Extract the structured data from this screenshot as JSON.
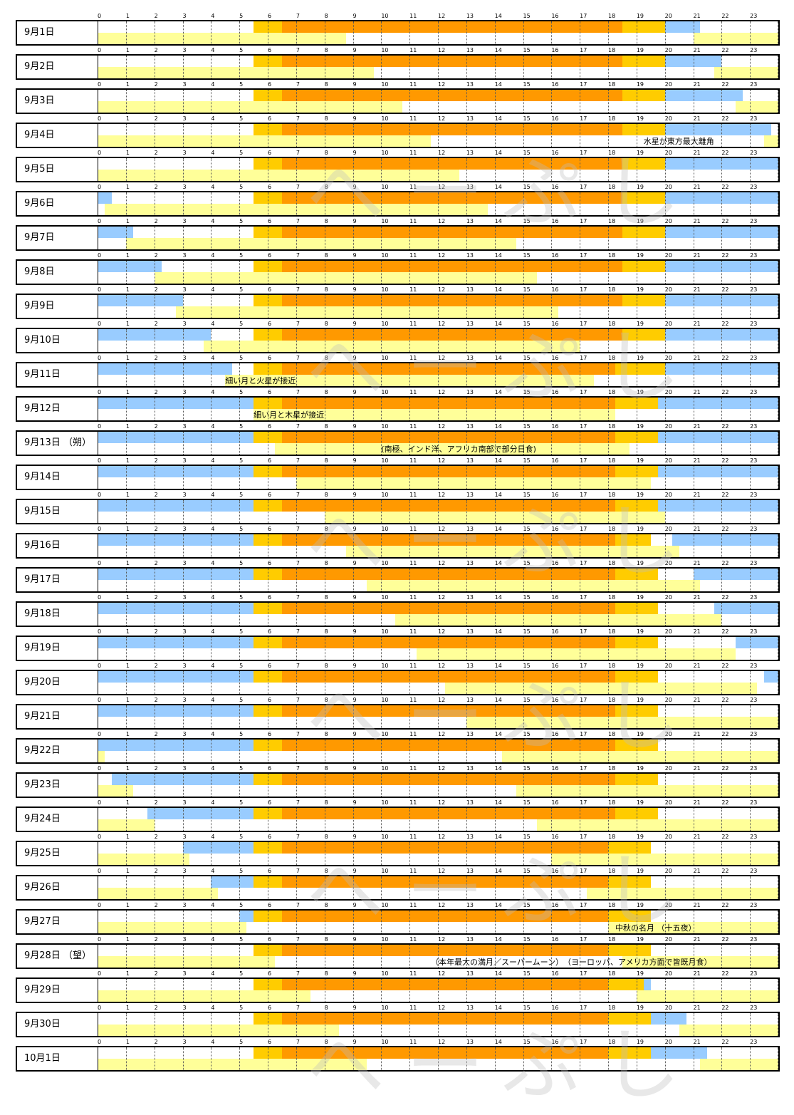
{
  "chart_data": {
    "type": "table",
    "hours": [
      "0",
      "1",
      "2",
      "3",
      "4",
      "5",
      "6",
      "7",
      "8",
      "9",
      "10",
      "11",
      "12",
      "13",
      "14",
      "15",
      "16",
      "17",
      "18",
      "19",
      "20",
      "21",
      "22",
      "23"
    ],
    "colors": {
      "daylight": "#ff9900",
      "twilight": "#ffcc00",
      "night_sky_blue": "#99ccff",
      "moon": "#ffff99"
    },
    "watermark_text": "へーぷし",
    "rows": [
      {
        "label": "9月1日",
        "sunrise": 5.5,
        "sunset": 18.5,
        "twi_end": 20.0,
        "twi_night_end": 21.25,
        "moon": [
          [
            0,
            8.75
          ],
          [
            21.0,
            24
          ]
        ],
        "note": ""
      },
      {
        "label": "9月2日",
        "sunrise": 5.5,
        "sunset": 18.5,
        "twi_end": 20.0,
        "twi_night_end": 22.0,
        "moon": [
          [
            0,
            9.75
          ],
          [
            21.75,
            24
          ]
        ],
        "note": ""
      },
      {
        "label": "9月3日",
        "sunrise": 5.5,
        "sunset": 18.5,
        "twi_end": 20.0,
        "twi_night_end": 22.75,
        "moon": [
          [
            0,
            10.75
          ],
          [
            22.5,
            24
          ]
        ],
        "note": ""
      },
      {
        "label": "9月4日",
        "sunrise": 5.5,
        "sunset": 18.5,
        "twi_end": 20.0,
        "twi_night_end": 23.75,
        "moon": [
          [
            0,
            11.75
          ],
          [
            23.5,
            24
          ]
        ],
        "note": "水星が東方最大離角"
      },
      {
        "label": "9月5日",
        "sunrise": 5.5,
        "sunset": 18.5,
        "twi_end": 20.0,
        "twi_night_end": 24,
        "moon": [
          [
            0,
            12.75
          ]
        ],
        "note": ""
      },
      {
        "label": "9月6日",
        "sunrise": 5.5,
        "sunset": 18.5,
        "twi_end": 20.0,
        "twi_night_end": 24,
        "morning_night": [
          0,
          0.5
        ],
        "moon": [
          [
            0.25,
            13.75
          ]
        ],
        "note": ""
      },
      {
        "label": "9月7日",
        "sunrise": 5.5,
        "sunset": 18.5,
        "twi_end": 20.0,
        "twi_night_end": 24,
        "morning_night": [
          0,
          1.25
        ],
        "moon": [
          [
            1.0,
            14.75
          ]
        ],
        "note": ""
      },
      {
        "label": "9月8日",
        "sunrise": 5.5,
        "sunset": 18.5,
        "twi_end": 20.0,
        "twi_night_end": 24,
        "morning_night": [
          0,
          2.25
        ],
        "moon": [
          [
            2.0,
            15.5
          ]
        ],
        "note": ""
      },
      {
        "label": "9月9日",
        "sunrise": 5.5,
        "sunset": 18.5,
        "twi_end": 20.0,
        "twi_night_end": 24,
        "morning_night": [
          0,
          3.0
        ],
        "moon": [
          [
            2.75,
            16.25
          ]
        ],
        "note": ""
      },
      {
        "label": "9月10日",
        "sunrise": 5.5,
        "sunset": 18.5,
        "twi_end": 20.0,
        "twi_night_end": 24,
        "morning_night": [
          0,
          4.0
        ],
        "moon": [
          [
            3.75,
            17.0
          ]
        ],
        "note": ""
      },
      {
        "label": "9月11日",
        "sunrise": 5.5,
        "sunset": 18.25,
        "twi_end": 20.0,
        "twi_night_end": 24,
        "morning_night": [
          0,
          4.75
        ],
        "moon": [
          [
            4.5,
            17.5
          ]
        ],
        "note": "細い月と火星が接近"
      },
      {
        "label": "9月12日",
        "sunrise": 5.5,
        "sunset": 18.25,
        "twi_end": 19.75,
        "twi_night_end": 24,
        "morning_night": [
          0,
          5.5
        ],
        "moon": [
          [
            5.5,
            18.25
          ]
        ],
        "note": "細い月と木星が接近"
      },
      {
        "label": "9月13日 （朔）",
        "sunrise": 5.5,
        "sunset": 18.25,
        "twi_end": 19.75,
        "twi_night_end": 24,
        "morning_night": [
          0,
          5.5
        ],
        "moon": [
          [
            6.25,
            18.75
          ]
        ],
        "note": "(南極、インド洋、アフリカ南部で部分日食)"
      },
      {
        "label": "9月14日",
        "sunrise": 5.5,
        "sunset": 18.25,
        "twi_end": 19.75,
        "twi_night_end": 24,
        "morning_night": [
          0,
          5.5
        ],
        "moon": [
          [
            7.0,
            19.5
          ]
        ],
        "note": ""
      },
      {
        "label": "9月15日",
        "sunrise": 5.5,
        "sunset": 18.25,
        "twi_end": 19.75,
        "twi_night_end": 24,
        "morning_night": [
          0,
          5.5
        ],
        "moon": [
          [
            8.0,
            20.0
          ]
        ],
        "note": ""
      },
      {
        "label": "9月16日",
        "sunrise": 5.5,
        "sunset": 18.25,
        "twi_end": 19.5,
        "twi_night_end": 24,
        "twi_gap": [
          19.75,
          20.25
        ],
        "morning_night": [
          0,
          5.5
        ],
        "moon": [
          [
            8.75,
            20.5
          ]
        ],
        "note": ""
      },
      {
        "label": "9月17日",
        "sunrise": 5.5,
        "sunset": 18.25,
        "twi_end": 19.75,
        "twi_night_end": 24,
        "twi_gap": [
          19.75,
          21.0
        ],
        "morning_night": [
          0,
          5.5
        ],
        "moon": [
          [
            9.5,
            21.25
          ]
        ],
        "note": ""
      },
      {
        "label": "9月18日",
        "sunrise": 5.5,
        "sunset": 18.25,
        "twi_end": 19.75,
        "twi_night_end": 24,
        "twi_gap": [
          19.75,
          21.75
        ],
        "morning_night": [
          0,
          5.5
        ],
        "moon": [
          [
            10.5,
            22.0
          ]
        ],
        "note": ""
      },
      {
        "label": "9月19日",
        "sunrise": 5.5,
        "sunset": 18.25,
        "twi_end": 19.75,
        "twi_night_end": 24,
        "twi_gap": [
          19.75,
          22.5
        ],
        "morning_night": [
          0,
          5.5
        ],
        "moon": [
          [
            11.25,
            22.5
          ]
        ],
        "note": ""
      },
      {
        "label": "9月20日",
        "sunrise": 5.5,
        "sunset": 18.25,
        "twi_end": 19.75,
        "twi_night_end": 24,
        "twi_gap": [
          19.75,
          23.5
        ],
        "morning_night": [
          0,
          5.5
        ],
        "moon": [
          [
            12.25,
            23.25
          ]
        ],
        "note": ""
      },
      {
        "label": "9月21日",
        "sunrise": 5.5,
        "sunset": 18.25,
        "twi_end": 19.75,
        "twi_night_end": 24,
        "twi_gap": [
          19.75,
          24
        ],
        "morning_night": [
          0,
          5.5
        ],
        "moon": [
          [
            13.0,
            24
          ]
        ],
        "note": ""
      },
      {
        "label": "9月22日",
        "sunrise": 5.5,
        "sunset": 18.25,
        "twi_end": 19.75,
        "twi_night_end": 24,
        "twi_gap": [
          19.75,
          24
        ],
        "morning_night": [
          0,
          5.5
        ],
        "moon": [
          [
            0,
            0.25
          ],
          [
            14.25,
            24
          ]
        ],
        "note": ""
      },
      {
        "label": "9月23日",
        "sunrise": 5.5,
        "sunset": 18.25,
        "twi_end": 19.75,
        "twi_night_end": 24,
        "twi_gap": [
          19.75,
          24
        ],
        "morning_night": [
          0.5,
          5.5
        ],
        "moon": [
          [
            0,
            1.25
          ],
          [
            14.75,
            24
          ]
        ],
        "note": ""
      },
      {
        "label": "9月24日",
        "sunrise": 5.5,
        "sunset": 18.25,
        "twi_end": 19.75,
        "twi_night_end": 24,
        "twi_gap": [
          19.75,
          24
        ],
        "morning_night": [
          1.75,
          5.5
        ],
        "moon": [
          [
            0,
            2.0
          ],
          [
            15.5,
            24
          ]
        ],
        "note": ""
      },
      {
        "label": "9月25日",
        "sunrise": 5.5,
        "sunset": 18.0,
        "twi_end": 19.5,
        "twi_night_end": 24,
        "twi_gap": [
          19.5,
          24
        ],
        "morning_night": [
          3.0,
          5.5
        ],
        "moon": [
          [
            0,
            3.25
          ],
          [
            16.0,
            24
          ]
        ],
        "note": ""
      },
      {
        "label": "9月26日",
        "sunrise": 5.5,
        "sunset": 18.0,
        "twi_end": 19.5,
        "twi_night_end": 24,
        "twi_gap": [
          19.5,
          24
        ],
        "morning_night": [
          4.0,
          5.5
        ],
        "moon": [
          [
            0,
            4.25
          ],
          [
            17.25,
            24
          ]
        ],
        "note": ""
      },
      {
        "label": "9月27日",
        "sunrise": 5.5,
        "sunset": 18.0,
        "twi_end": 19.5,
        "twi_night_end": 24,
        "twi_gap": [
          19.5,
          24
        ],
        "morning_night": [
          5.0,
          5.5
        ],
        "moon": [
          [
            0,
            5.25
          ],
          [
            18.0,
            24
          ]
        ],
        "note": "中秋の名月 （十五夜）"
      },
      {
        "label": "9月28日 （望）",
        "sunrise": 5.5,
        "sunset": 18.0,
        "twi_end": 19.5,
        "twi_night_end": 24,
        "twi_gap": [
          19.5,
          24
        ],
        "moon": [
          [
            0,
            6.25
          ],
          [
            18.5,
            24
          ]
        ],
        "note": "（本年最大の満月／スーパームーン）　（ヨーロッパ、アメリカ方面で皆既月食）"
      },
      {
        "label": "9月29日",
        "sunrise": 5.5,
        "sunset": 18.0,
        "twi_end": 19.25,
        "twi_night_end": 24,
        "twi_gap": [
          19.5,
          24
        ],
        "eve_night": [
          19.25,
          19.5
        ],
        "moon": [
          [
            0,
            7.5
          ],
          [
            19.0,
            24
          ]
        ],
        "note": ""
      },
      {
        "label": "9月30日",
        "sunrise": 5.5,
        "sunset": 18.0,
        "twi_end": 19.5,
        "twi_night_end": 20.75,
        "eve_night": [
          19.5,
          20.75
        ],
        "moon": [
          [
            0,
            8.5
          ],
          [
            20.5,
            24
          ]
        ],
        "note": ""
      },
      {
        "label": "10月1日",
        "sunrise": 5.5,
        "sunset": 18.0,
        "twi_end": 19.5,
        "twi_night_end": 21.5,
        "eve_night": [
          19.5,
          21.5
        ],
        "moon": [
          [
            0,
            9.5
          ],
          [
            21.25,
            24
          ]
        ],
        "note": ""
      }
    ]
  }
}
